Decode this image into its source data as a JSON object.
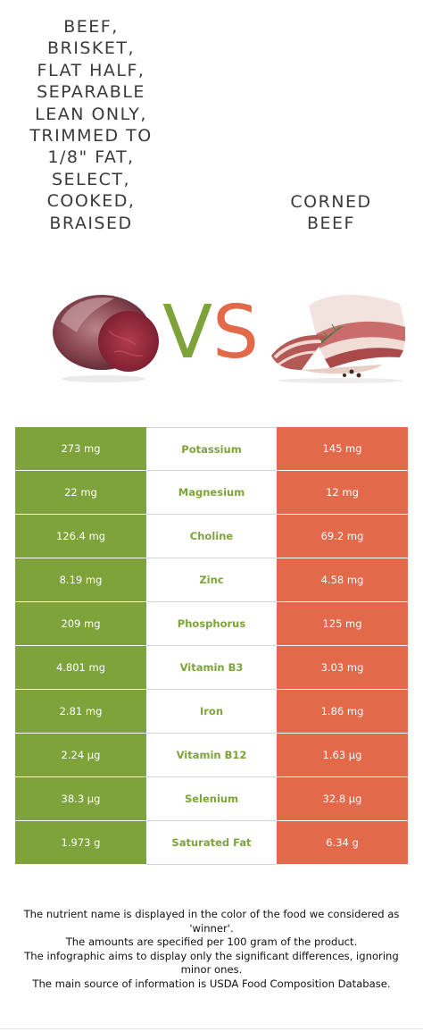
{
  "food_left": {
    "name": "Beef,\nbrisket,\nflat half,\nseparable\nlean only,\ntrimmed to\n1/8\" fat,\nselect,\ncooked,\nbraised",
    "color": "#7da33a",
    "image_icon": "beef-roast-image"
  },
  "food_right": {
    "name": "Corned\nbeef",
    "color": "#e26a4a",
    "image_icon": "corned-beef-image"
  },
  "vs": {
    "v": "V",
    "s": "S"
  },
  "rows": [
    {
      "left": "273 mg",
      "nutrient": "Potassium",
      "right": "145 mg"
    },
    {
      "left": "22 mg",
      "nutrient": "Magnesium",
      "right": "12 mg"
    },
    {
      "left": "126.4 mg",
      "nutrient": "Choline",
      "right": "69.2 mg"
    },
    {
      "left": "8.19 mg",
      "nutrient": "Zinc",
      "right": "4.58 mg"
    },
    {
      "left": "209 mg",
      "nutrient": "Phosphorus",
      "right": "125 mg"
    },
    {
      "left": "4.801 mg",
      "nutrient": "Vitamin B3",
      "right": "3.03 mg"
    },
    {
      "left": "2.81 mg",
      "nutrient": "Iron",
      "right": "1.86 mg"
    },
    {
      "left": "2.24 µg",
      "nutrient": "Vitamin B12",
      "right": "1.63 µg"
    },
    {
      "left": "38.3 µg",
      "nutrient": "Selenium",
      "right": "32.8 µg"
    },
    {
      "left": "1.973 g",
      "nutrient": "Saturated Fat",
      "right": "6.34 g"
    }
  ],
  "footer": {
    "line1": "The nutrient name is displayed in the color of the food we considered as 'winner'.",
    "line2": "The amounts are specified per 100 gram of the product.",
    "line3": "The infographic aims to display only the significant differences, ignoring minor ones.",
    "line4": "The main source of information is USDA Food Composition Database."
  }
}
